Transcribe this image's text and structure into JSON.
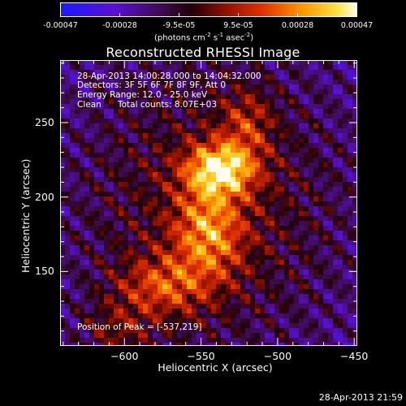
{
  "colorbar": {
    "tick_labels": [
      "-0.00047",
      "-0.00028",
      "-9.5e-05",
      "9.5e-05",
      "0.00028",
      "0.00047"
    ],
    "units_prefix": "(photons cm",
    "units_sup1": "-2",
    "units_mid": " s",
    "units_sup2": "-1",
    "units_mid2": " asec",
    "units_sup3": "-2",
    "units_suffix": ")",
    "colors": [
      "#0a1cff",
      "#5b10c8",
      "#6a2a9a",
      "#a01a10",
      "#e03a00",
      "#ff9a00",
      "#ffd640",
      "#ffffe6"
    ]
  },
  "chart_data": {
    "type": "heatmap",
    "title": "Reconstructed RHESSI Image",
    "xlabel": "Heliocentric X (arcsec)",
    "ylabel": "Heliocentric Y (arcsec)",
    "xlim": [
      -642,
      -448
    ],
    "ylim": [
      100,
      292
    ],
    "xticks": [
      -600,
      -550,
      -500,
      -450
    ],
    "yticks": [
      150,
      200,
      250
    ],
    "clim": [
      -0.00047,
      0.00047
    ],
    "peak": {
      "x": -537,
      "y": 219
    },
    "annotations": {
      "time": "28-Apr-2013 14:00:28.000 to 14:04:32.000",
      "detectors": "Detectors: 3F 5F 6F 7F 8F 9F, Att 0",
      "energy": "Energy Range: 12.0 - 25.0 keV",
      "clean": "Clean",
      "counts": "Total counts: 8.07E+03",
      "peak_label": "Position of Peak = [-537,219]"
    }
  },
  "footer": {
    "timestamp": "28-Apr-2013 21:59"
  }
}
